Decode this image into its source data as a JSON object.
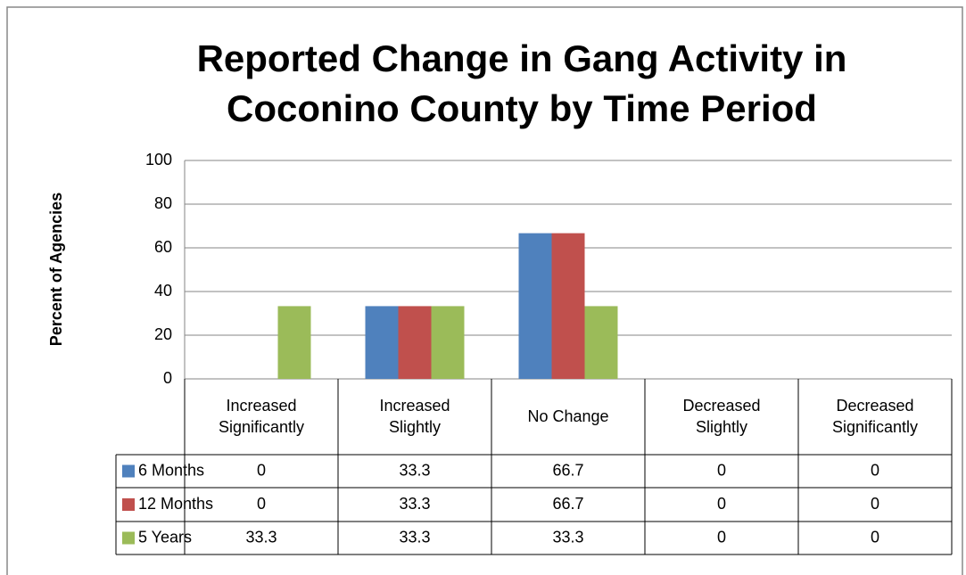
{
  "chart_data": {
    "type": "bar",
    "title": "Reported Change in Gang Activity in Coconino County by Time Period",
    "y_label": "Percent of Agencies",
    "categories": [
      "Increased Significantly",
      "Increased Slightly",
      "No Change",
      "Decreased Slightly",
      "Decreased Significantly"
    ],
    "series": [
      {
        "name": "6 Months",
        "color": "#4f81bd",
        "values": [
          0,
          33.3,
          66.7,
          0,
          0
        ]
      },
      {
        "name": "12 Months",
        "color": "#c0504d",
        "values": [
          0,
          33.3,
          66.7,
          0,
          0
        ]
      },
      {
        "name": "5 Years",
        "color": "#9bbb59",
        "values": [
          33.3,
          33.3,
          33.3,
          0,
          0
        ]
      }
    ],
    "ylim": [
      0,
      100
    ],
    "yticks": [
      0,
      20,
      40,
      60,
      80,
      100
    ],
    "grid": true,
    "data_table": true
  }
}
